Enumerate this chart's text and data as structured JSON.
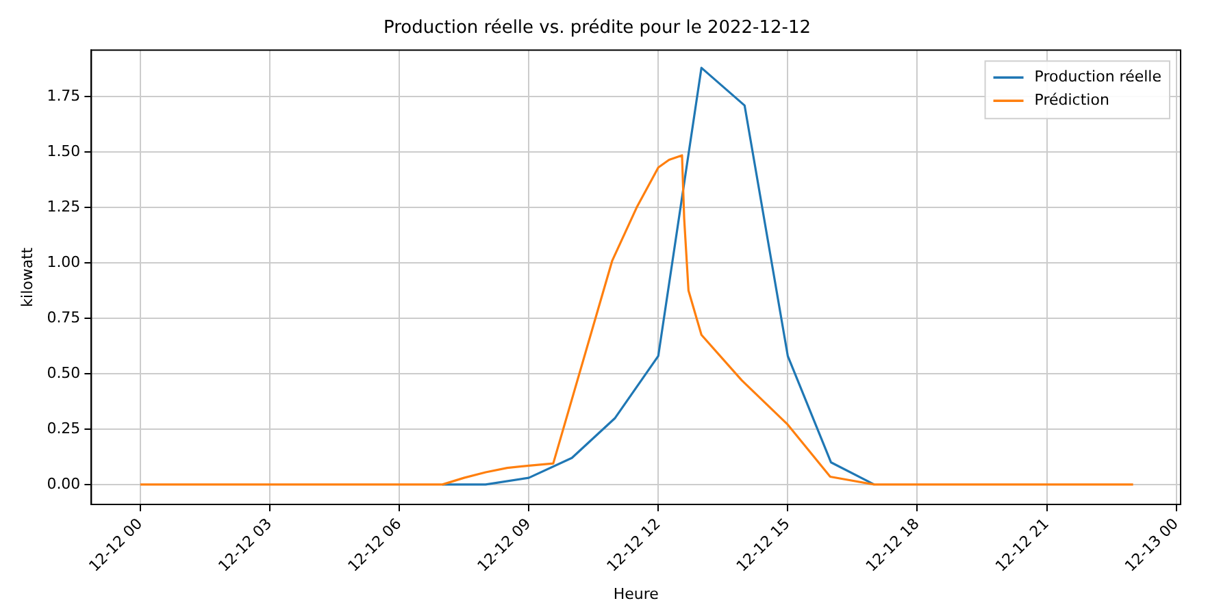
{
  "chart_data": {
    "type": "line",
    "title": "Production réelle vs. prédite pour le 2022-12-12",
    "xlabel": "Heure",
    "ylabel": "kilowatt",
    "xlim": [
      "2022-12-11T22:52",
      "2022-12-13T00:06"
    ],
    "ylim": [
      -0.09,
      1.96
    ],
    "xticks": [
      {
        "value": "2022-12-12T00:00",
        "label": "12-12 00"
      },
      {
        "value": "2022-12-12T03:00",
        "label": "12-12 03"
      },
      {
        "value": "2022-12-12T06:00",
        "label": "12-12 06"
      },
      {
        "value": "2022-12-12T09:00",
        "label": "12-12 09"
      },
      {
        "value": "2022-12-12T12:00",
        "label": "12-12 12"
      },
      {
        "value": "2022-12-12T15:00",
        "label": "12-12 15"
      },
      {
        "value": "2022-12-12T18:00",
        "label": "12-12 18"
      },
      {
        "value": "2022-12-12T21:00",
        "label": "12-12 21"
      },
      {
        "value": "2022-12-13T00:00",
        "label": "12-13 00"
      }
    ],
    "yticks": [
      {
        "value": 0,
        "label": "0.00"
      },
      {
        "value": 0.25,
        "label": "0.25"
      },
      {
        "value": 0.5,
        "label": "0.50"
      },
      {
        "value": 0.75,
        "label": "0.75"
      },
      {
        "value": 1,
        "label": "1.00"
      },
      {
        "value": 1.25,
        "label": "1.25"
      },
      {
        "value": 1.5,
        "label": "1.50"
      },
      {
        "value": 1.75,
        "label": "1.75"
      }
    ],
    "grid": true,
    "legend": "top right",
    "marker": "none",
    "line_style": "solid",
    "series": [
      {
        "name": "Production réelle",
        "color": "#1f77b4",
        "x": [
          "2022-12-12T07:00",
          "2022-12-12T08:00",
          "2022-12-12T09:00",
          "2022-12-12T10:00",
          "2022-12-12T11:00",
          "2022-12-12T12:00",
          "2022-12-12T13:00",
          "2022-12-12T14:00",
          "2022-12-12T15:00",
          "2022-12-12T16:00",
          "2022-12-12T17:00"
        ],
        "values": [
          0,
          0.0,
          0.03,
          0.12,
          0.3,
          0.58,
          1.88,
          1.71,
          0.58,
          0.1,
          0
        ]
      },
      {
        "name": "Prédiction",
        "color": "#ff7f0e",
        "x": [
          "2022-12-12T00:00",
          "2022-12-12T01:00",
          "2022-12-12T02:00",
          "2022-12-12T03:00",
          "2022-12-12T04:00",
          "2022-12-12T05:00",
          "2022-12-12T06:00",
          "2022-12-12T07:00",
          "2022-12-12T07:30",
          "2022-12-12T08:00",
          "2022-12-12T08:30",
          "2022-12-12T09:00",
          "2022-12-12T09:34",
          "2022-12-12T10:56",
          "2022-12-12T11:30",
          "2022-12-12T12:00",
          "2022-12-12T12:15",
          "2022-12-12T12:33",
          "2022-12-12T12:36",
          "2022-12-12T12:42",
          "2022-12-12T13:00",
          "2022-12-12T13:56",
          "2022-12-12T15:00",
          "2022-12-12T15:59",
          "2022-12-12T17:00",
          "2022-12-12T18:00",
          "2022-12-12T19:00",
          "2022-12-12T20:00",
          "2022-12-12T21:00",
          "2022-12-12T22:00",
          "2022-12-12T23:00"
        ],
        "values": [
          0,
          0,
          0,
          0,
          0,
          0,
          0,
          0,
          0.03,
          0.055,
          0.075,
          0.085,
          0.095,
          1.01,
          1.25,
          1.43,
          1.465,
          1.485,
          1.2,
          0.875,
          0.675,
          0.47,
          0.27,
          0.035,
          0,
          0,
          0,
          0,
          0,
          0,
          0
        ]
      }
    ]
  }
}
